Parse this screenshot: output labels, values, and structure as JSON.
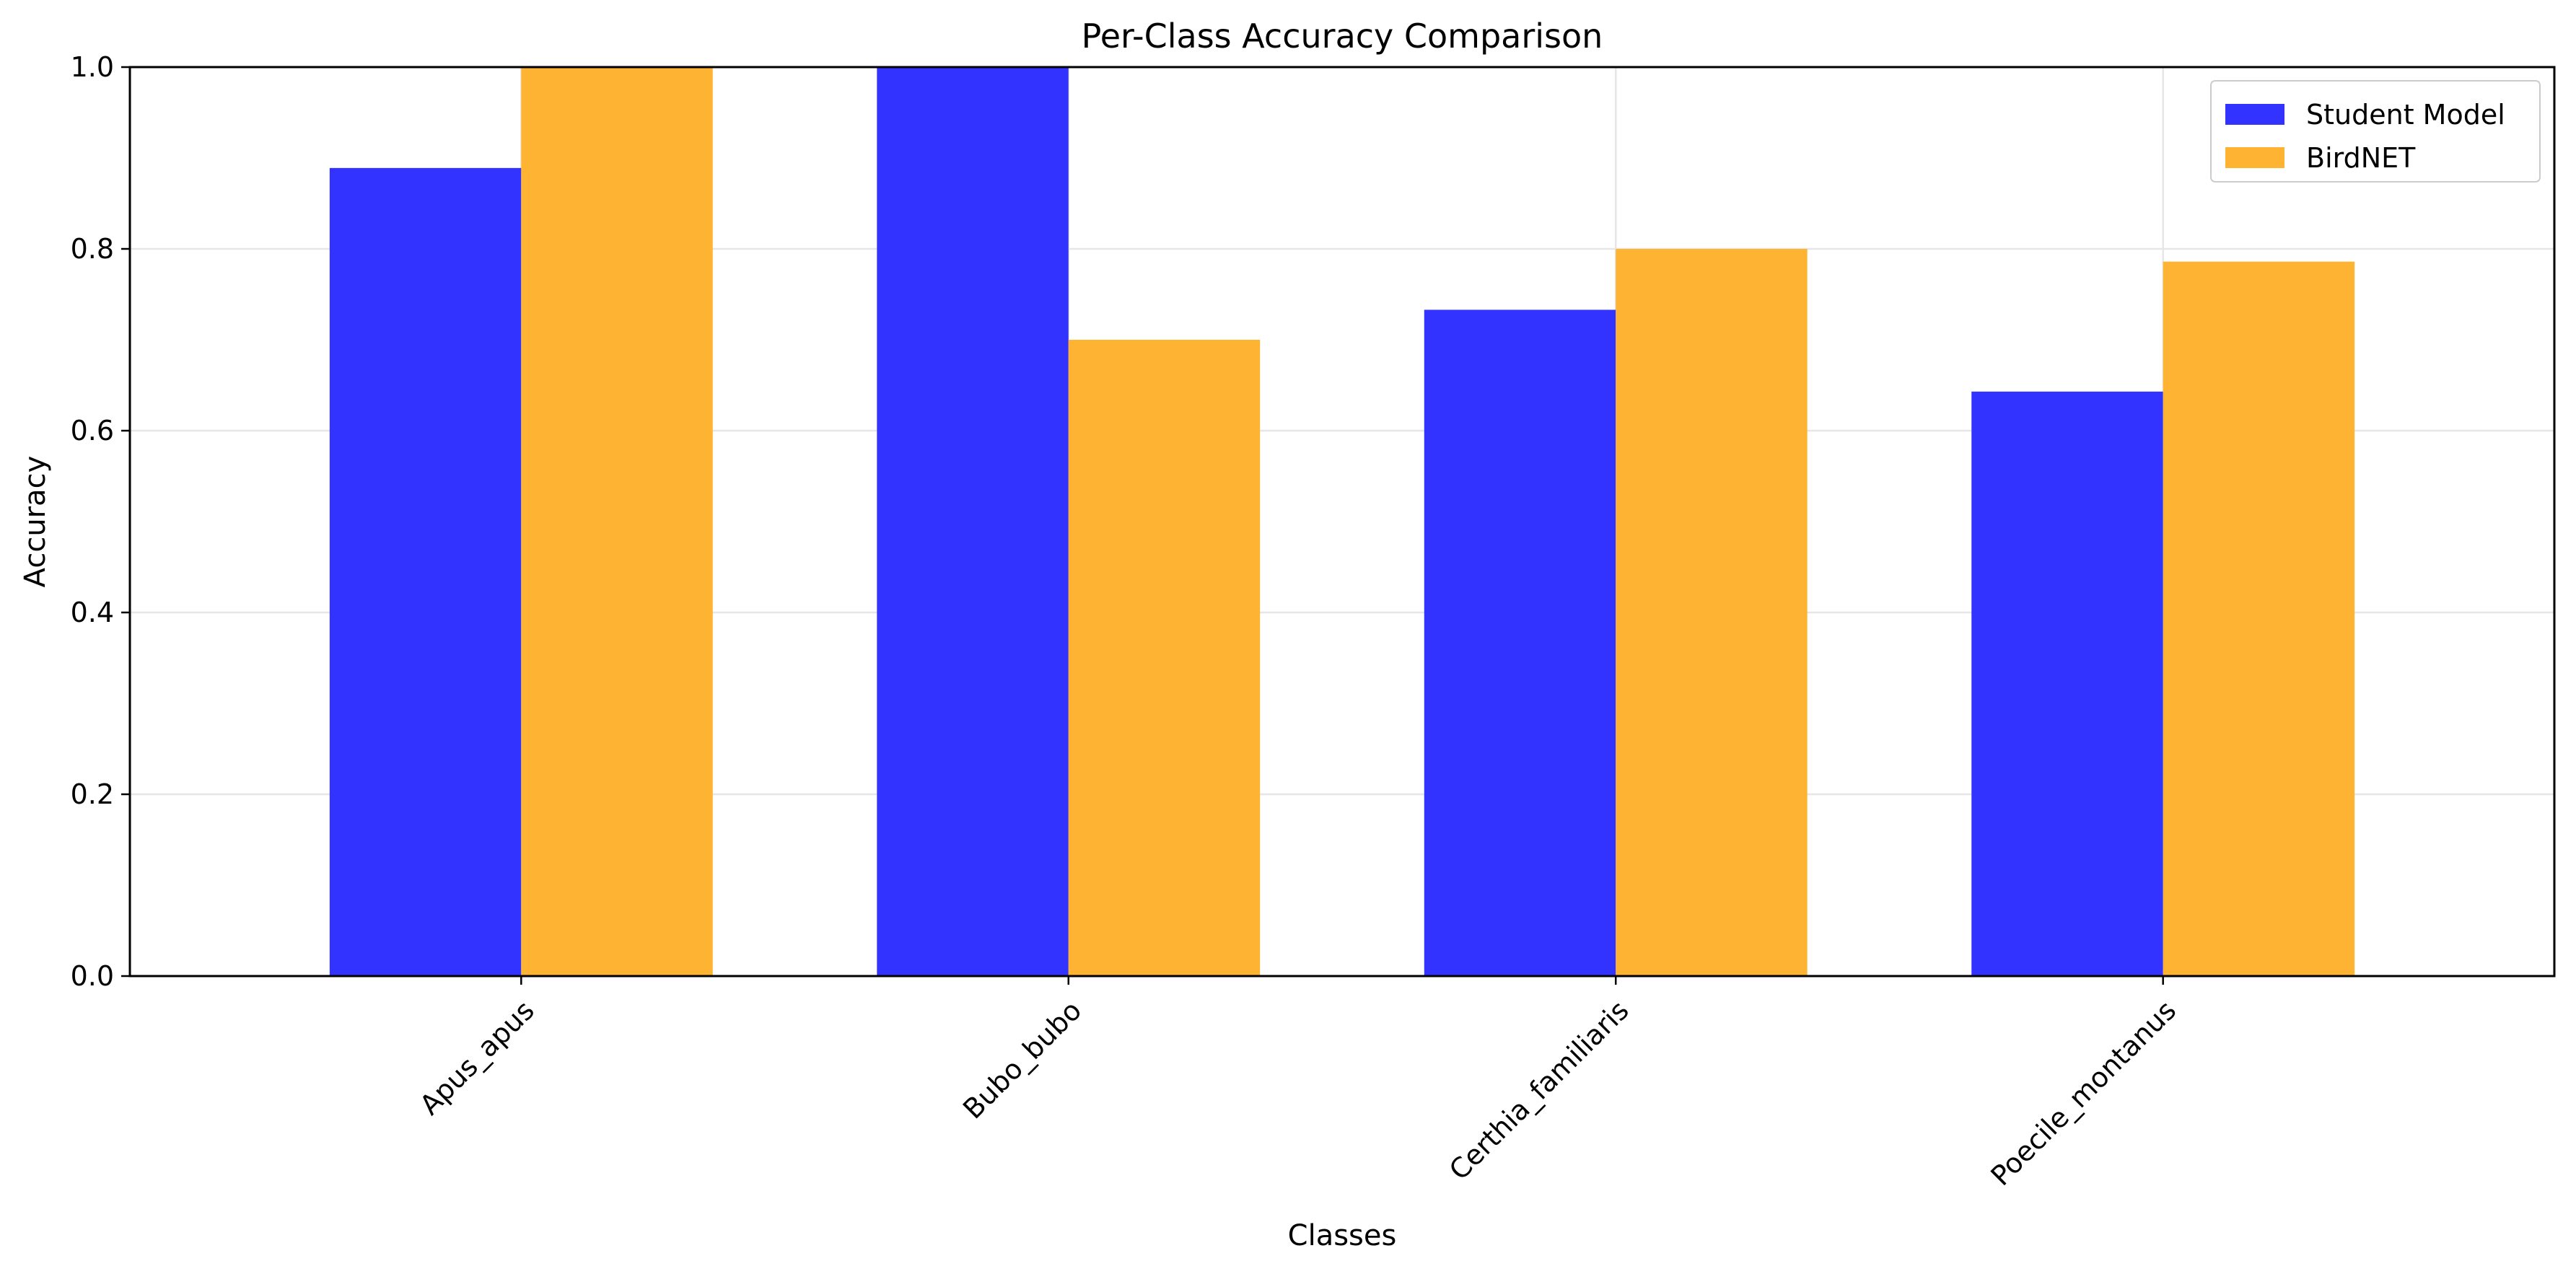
{
  "chart_data": {
    "type": "bar",
    "title": "Per-Class Accuracy Comparison",
    "xlabel": "Classes",
    "ylabel": "Accuracy",
    "categories": [
      "Apus_apus",
      "Bubo_bubo",
      "Certhia_familiaris",
      "Poecile_montanus"
    ],
    "series": [
      {
        "name": "Student Model",
        "color": "#3333ff",
        "values": [
          0.889,
          1.0,
          0.733,
          0.643
        ]
      },
      {
        "name": "BirdNET",
        "color": "#ffb333",
        "values": [
          1.0,
          0.7,
          0.8,
          0.786
        ]
      }
    ],
    "ylim": [
      0,
      1.0
    ],
    "yticks": [
      "0.0",
      "0.2",
      "0.4",
      "0.6",
      "0.8",
      "1.0"
    ],
    "grid": true,
    "legend_position": "top-right",
    "xtick_rotation": "45"
  }
}
